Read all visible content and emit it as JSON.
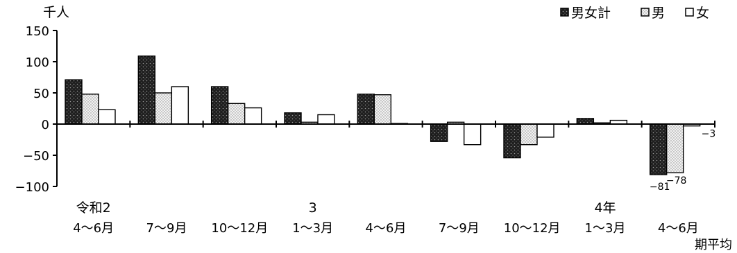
{
  "chart_data": {
    "type": "bar",
    "title": "",
    "ylabel": "千人",
    "xlabel": "期平均",
    "ylim": [
      -100,
      150
    ],
    "yticks": [
      150,
      100,
      50,
      0,
      -50,
      -100
    ],
    "ytick_labels": [
      "150",
      "100",
      "50",
      "0",
      "−50",
      "−100"
    ],
    "grid": false,
    "legend_position": "top-right",
    "categories": [
      {
        "year": "令和2",
        "period": "4〜6月"
      },
      {
        "year": "",
        "period": "7〜9月"
      },
      {
        "year": "",
        "period": "10〜12月"
      },
      {
        "year": "3",
        "period": "1〜3月"
      },
      {
        "year": "",
        "period": "4〜6月"
      },
      {
        "year": "",
        "period": "7〜9月"
      },
      {
        "year": "",
        "period": "10〜12月"
      },
      {
        "year": "4年",
        "period": "1〜3月"
      },
      {
        "year": "",
        "period": "4〜6月"
      }
    ],
    "series": [
      {
        "name": "男女計",
        "pattern": "dark",
        "values": [
          71,
          109,
          60,
          18,
          48,
          -28,
          -54,
          9,
          -81
        ]
      },
      {
        "name": "男",
        "pattern": "light",
        "values": [
          48,
          50,
          33,
          3,
          47,
          3,
          -33,
          2,
          -78
        ]
      },
      {
        "name": "女",
        "pattern": "white",
        "values": [
          23,
          60,
          26,
          15,
          1,
          -33,
          -21,
          6,
          -3
        ]
      }
    ],
    "data_labels": [
      {
        "series": 0,
        "index": 8,
        "text": "−81"
      },
      {
        "series": 1,
        "index": 8,
        "text": "−78"
      },
      {
        "series": 2,
        "index": 8,
        "text": "−3"
      }
    ],
    "colors": {
      "bar_stroke": "#000000",
      "dark_fill": "#2b2b2b",
      "light_fill": "#e4e4e4",
      "white_fill": "#ffffff"
    }
  }
}
